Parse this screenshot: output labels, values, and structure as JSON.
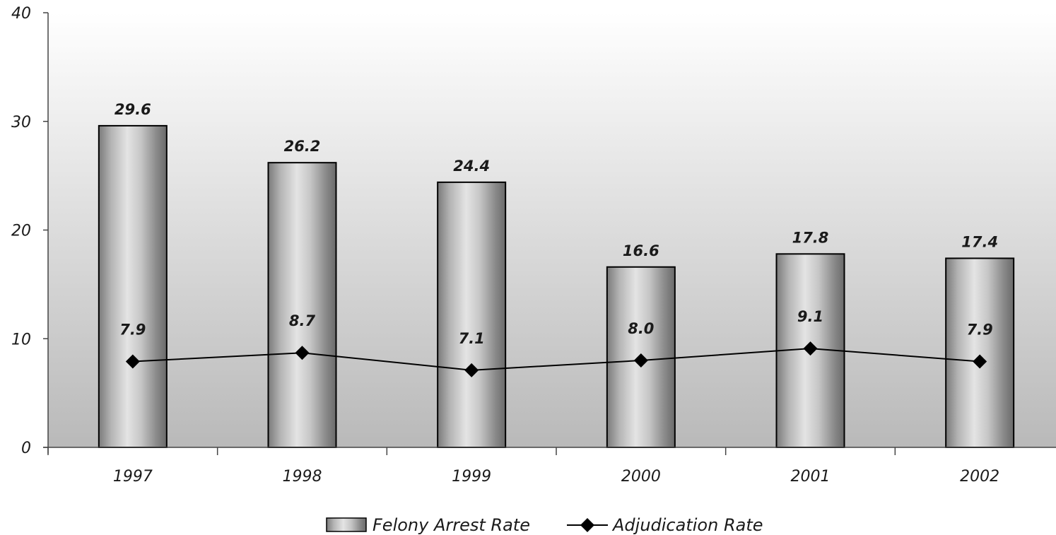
{
  "chart_data": {
    "type": "bar",
    "categories": [
      "1997",
      "1998",
      "1999",
      "2000",
      "2001",
      "2002"
    ],
    "series": [
      {
        "name": "Felony Arrest Rate",
        "type": "bar",
        "values": [
          29.6,
          26.2,
          24.4,
          16.6,
          17.8,
          17.4
        ],
        "labels": [
          "29.6",
          "26.2",
          "24.4",
          "16.6",
          "17.8",
          "17.4"
        ]
      },
      {
        "name": "Adjudication Rate",
        "type": "line",
        "marker": "diamond",
        "values": [
          7.9,
          8.7,
          7.1,
          8.0,
          9.1,
          7.9
        ],
        "labels": [
          "7.9",
          "8.7",
          "7.1",
          "8.0",
          "9.1",
          "7.9"
        ]
      }
    ],
    "y_ticks": [
      "0",
      "10",
      "20",
      "30",
      "40"
    ],
    "ylim": [
      0,
      40
    ],
    "title": "",
    "xlabel": "",
    "ylabel": "",
    "grid": false,
    "legend_position": "bottom",
    "colors": {
      "bar_edge": "#000000",
      "line": "#000000",
      "plot_bg_top": "#ffffff",
      "plot_bg_bottom": "#b9b9b9"
    }
  }
}
